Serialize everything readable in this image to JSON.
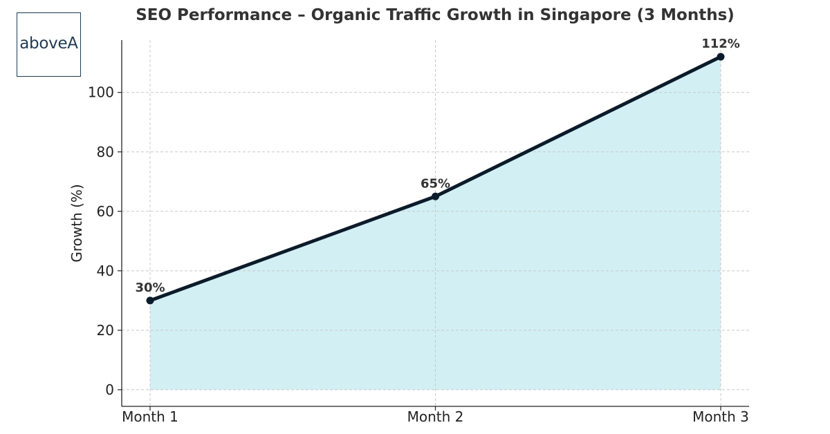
{
  "logo": {
    "text": "aboveA"
  },
  "chart_data": {
    "type": "area",
    "title": "SEO Performance – Organic Traffic Growth in Singapore (3 Months)",
    "xlabel": "",
    "ylabel": "Growth (%)",
    "categories": [
      "Month 1",
      "Month 2",
      "Month 3"
    ],
    "values": [
      30,
      65,
      112
    ],
    "data_labels": [
      "30%",
      "65%",
      "112%"
    ],
    "yticks": [
      0,
      20,
      40,
      60,
      80,
      100
    ],
    "ylim": [
      -5.6,
      117.6
    ],
    "grid": true,
    "colors": {
      "line": "#0c1b2a",
      "fill": "#d2eff4",
      "grid": "#c8c8c8",
      "axis": "#222222"
    }
  }
}
